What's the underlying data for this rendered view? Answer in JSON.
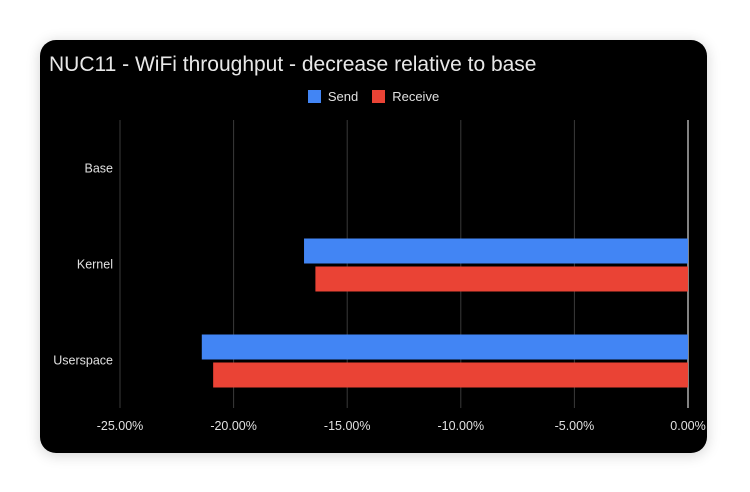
{
  "chart_data": {
    "type": "bar",
    "orientation": "horizontal",
    "title": "NUC11 - WiFi throughput - decrease relative to base",
    "categories": [
      "Base",
      "Kernel",
      "Userspace"
    ],
    "series": [
      {
        "name": "Send",
        "color": "#4285f4",
        "values": [
          0,
          -16.9,
          -21.4
        ]
      },
      {
        "name": "Receive",
        "color": "#ea4335",
        "values": [
          0,
          -16.4,
          -20.9
        ]
      }
    ],
    "xlim": [
      -25,
      0
    ],
    "x_ticks": [
      -25,
      -20,
      -15,
      -10,
      -5,
      0
    ],
    "x_tick_labels": [
      "-25.00%",
      "-20.00%",
      "-15.00%",
      "-10.00%",
      "-5.00%",
      "0.00%"
    ],
    "xlabel": "",
    "ylabel": "",
    "grid": true,
    "legend_position": "top",
    "background": "#000000"
  }
}
